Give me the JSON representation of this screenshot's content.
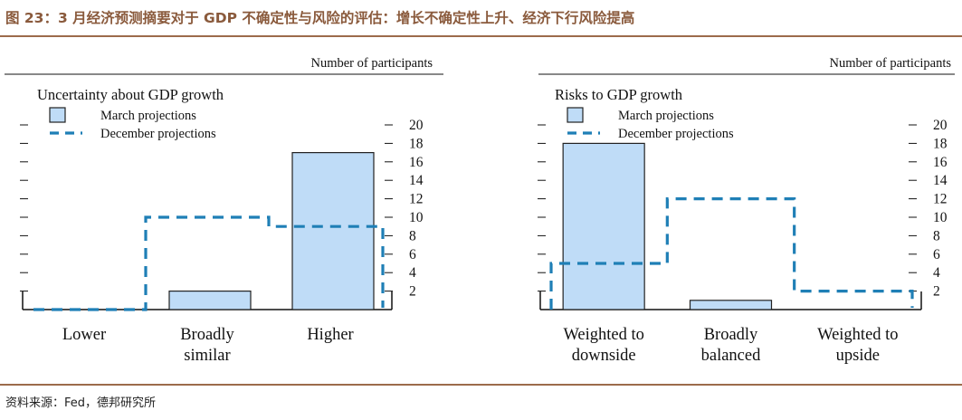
{
  "figure_title": "图 23：3 月经济预测摘要对于 GDP 不确定性与风险的评估：增长不确定性上升、经济下行风险提高",
  "source": "资料来源：Fed，德邦研究所",
  "colors": {
    "bar_fill": "#bfdcf7",
    "bar_stroke": "#222222",
    "dashed": "#1f7fb6",
    "title_brown": "#8a5a3c",
    "rule_brown": "#9c6b4b"
  },
  "chart_data": [
    {
      "type": "bar",
      "title": "Uncertainty about GDP growth",
      "top_label": "Number of participants",
      "categories": [
        "Lower",
        "Broadly similar",
        "Higher"
      ],
      "category_lines": [
        [
          "Lower"
        ],
        [
          "Broadly",
          "similar"
        ],
        [
          "Higher"
        ]
      ],
      "series": [
        {
          "name": "March projections",
          "style": "bar",
          "values": [
            0,
            2,
            17
          ]
        },
        {
          "name": "December projections",
          "style": "dashed-step",
          "values": [
            0,
            10,
            9
          ]
        }
      ],
      "ylim": [
        0,
        20
      ],
      "yticks": [
        2,
        4,
        6,
        8,
        10,
        12,
        14,
        16,
        18,
        20
      ],
      "grid": false,
      "legend": "top-left"
    },
    {
      "type": "bar",
      "title": "Risks to GDP growth",
      "top_label": "Number of participants",
      "categories": [
        "Weighted to downside",
        "Broadly balanced",
        "Weighted to upside"
      ],
      "category_lines": [
        [
          "Weighted to",
          "downside"
        ],
        [
          "Broadly",
          "balanced"
        ],
        [
          "Weighted to",
          "upside"
        ]
      ],
      "series": [
        {
          "name": "March projections",
          "style": "bar",
          "values": [
            18,
            1,
            0
          ]
        },
        {
          "name": "December projections",
          "style": "dashed-step",
          "values": [
            5,
            12,
            2
          ]
        }
      ],
      "ylim": [
        0,
        20
      ],
      "yticks": [
        2,
        4,
        6,
        8,
        10,
        12,
        14,
        16,
        18,
        20
      ],
      "grid": false,
      "legend": "top-left"
    }
  ]
}
